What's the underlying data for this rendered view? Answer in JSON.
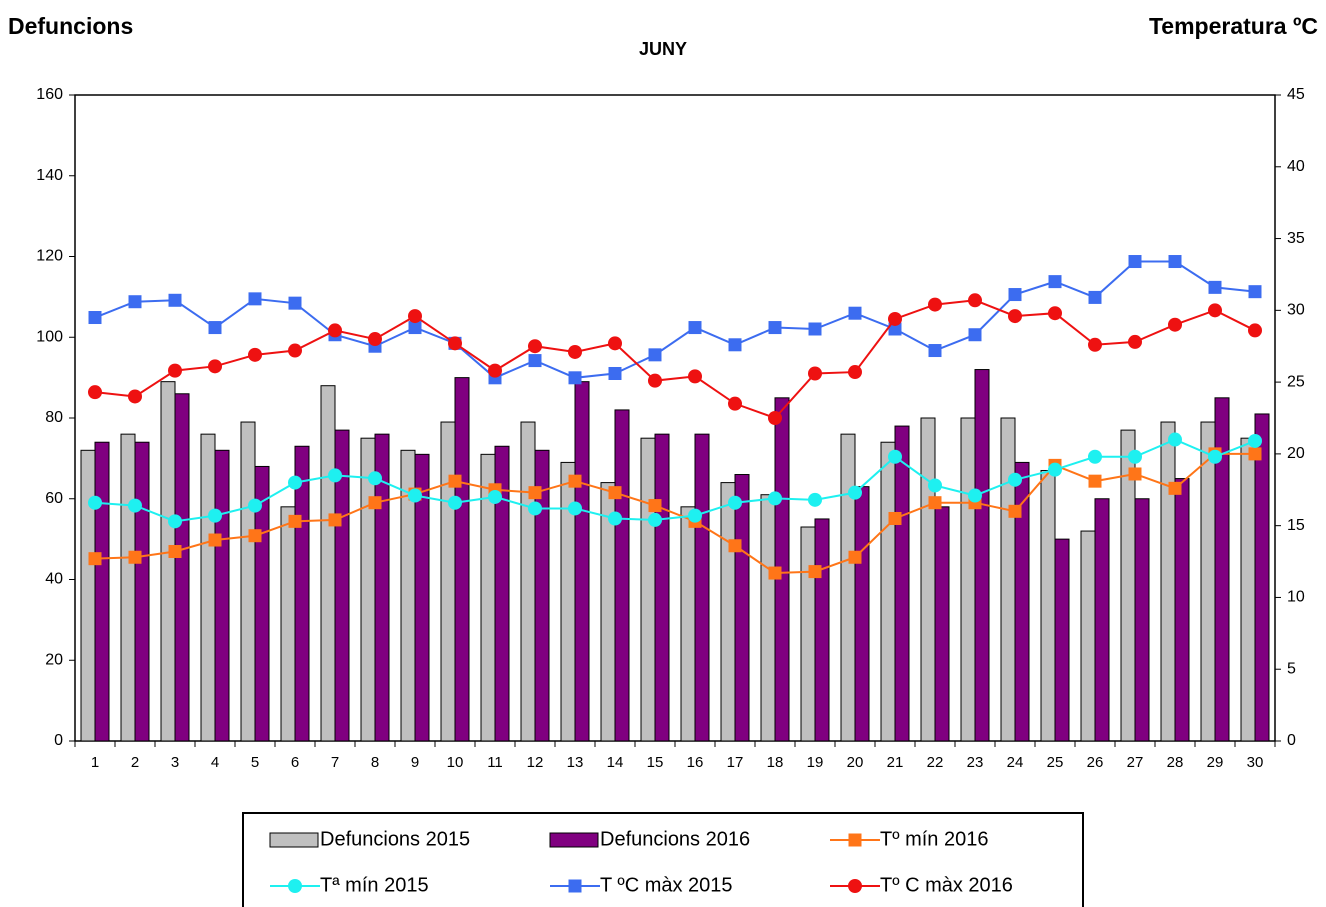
{
  "chart_data": {
    "type": "bar",
    "title": "JUNY",
    "ylabel": "Defuncions",
    "y2label": "Temperatura ºC",
    "categories": [
      "1",
      "2",
      "3",
      "4",
      "5",
      "6",
      "7",
      "8",
      "9",
      "10",
      "11",
      "12",
      "13",
      "14",
      "15",
      "16",
      "17",
      "18",
      "19",
      "20",
      "21",
      "22",
      "23",
      "24",
      "25",
      "26",
      "27",
      "28",
      "29",
      "30"
    ],
    "ylim": [
      0,
      160
    ],
    "yticks": [
      0,
      20,
      40,
      60,
      80,
      100,
      120,
      140,
      160
    ],
    "y2lim": [
      0,
      45
    ],
    "y2ticks": [
      0,
      5,
      10,
      15,
      20,
      25,
      30,
      35,
      40,
      45
    ],
    "series": [
      {
        "name": "Defuncions 2015",
        "type": "bar",
        "color": "#c0c0c0",
        "values": [
          72,
          76,
          89,
          76,
          79,
          58,
          88,
          75,
          72,
          79,
          71,
          79,
          69,
          64,
          75,
          58,
          64,
          61,
          53,
          76,
          74,
          80,
          80,
          80,
          67,
          52,
          77,
          79,
          79,
          75
        ]
      },
      {
        "name": "Defuncions 2016",
        "type": "bar",
        "color": "#800080",
        "values": [
          74,
          74,
          86,
          72,
          68,
          73,
          77,
          76,
          71,
          90,
          73,
          72,
          89,
          82,
          76,
          76,
          66,
          85,
          55,
          63,
          78,
          58,
          92,
          69,
          50,
          60,
          60,
          65,
          85,
          81
        ]
      },
      {
        "name": "Tº mín 2016",
        "type": "line",
        "axis": "y2",
        "marker": "square",
        "color": "#ff7518",
        "values": [
          12.7,
          12.8,
          13.2,
          14.0,
          14.3,
          15.3,
          15.4,
          16.6,
          17.2,
          18.1,
          17.5,
          17.3,
          18.1,
          17.3,
          16.4,
          15.3,
          13.6,
          11.7,
          11.8,
          12.8,
          15.5,
          16.6,
          16.6,
          16.0,
          19.2,
          18.1,
          18.6,
          17.6,
          20.0,
          20.0
        ]
      },
      {
        "name": "Tª mín 2015",
        "type": "line",
        "axis": "y2",
        "marker": "circle",
        "color": "#1ef0f0",
        "values": [
          16.6,
          16.4,
          15.3,
          15.7,
          16.4,
          18.0,
          18.5,
          18.3,
          17.1,
          16.6,
          17.0,
          16.2,
          16.2,
          15.5,
          15.4,
          15.7,
          16.6,
          16.9,
          16.8,
          17.3,
          19.8,
          17.8,
          17.1,
          18.2,
          18.9,
          19.8,
          19.8,
          21.0,
          19.8,
          20.9
        ]
      },
      {
        "name": "T ºC màx 2015",
        "type": "line",
        "axis": "y2",
        "marker": "square",
        "color": "#3c6cf0",
        "values": [
          29.5,
          30.6,
          30.7,
          28.8,
          30.8,
          30.5,
          28.3,
          27.5,
          28.8,
          27.7,
          25.3,
          26.5,
          25.3,
          25.6,
          26.9,
          28.8,
          27.6,
          28.8,
          28.7,
          29.8,
          28.7,
          27.2,
          28.3,
          31.1,
          32.0,
          30.9,
          33.4,
          33.4,
          31.6,
          31.3
        ]
      },
      {
        "name": "Tº C màx 2016",
        "type": "line",
        "axis": "y2",
        "marker": "circle",
        "color": "#ee1111",
        "values": [
          24.3,
          24.0,
          25.8,
          26.1,
          26.9,
          27.2,
          28.6,
          28.0,
          29.6,
          27.7,
          25.8,
          27.5,
          27.1,
          27.7,
          25.1,
          25.4,
          23.5,
          22.5,
          25.6,
          25.7,
          29.4,
          30.4,
          30.7,
          29.6,
          29.8,
          27.6,
          27.8,
          29.0,
          30.0,
          28.6
        ]
      }
    ]
  }
}
